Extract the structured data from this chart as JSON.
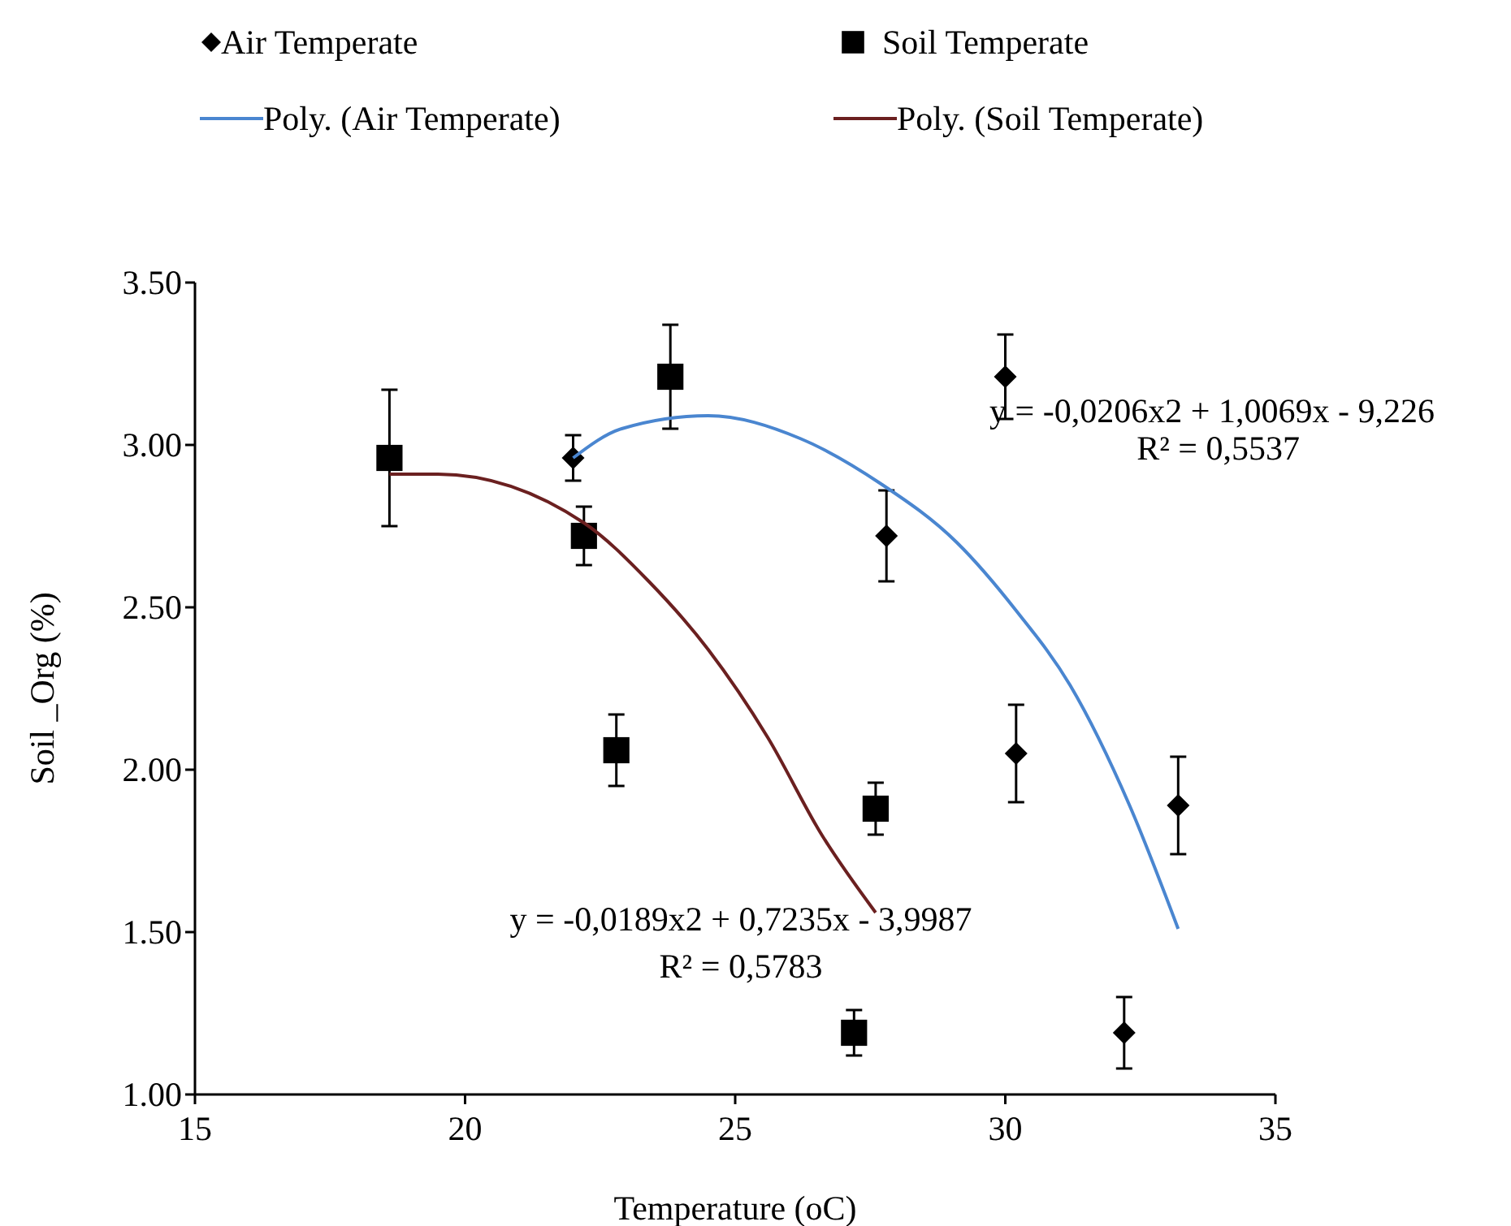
{
  "chart_data": {
    "type": "scatter",
    "xlabel": "Temperature (oC)",
    "ylabel": "Soil _Org  (%)",
    "xlim": [
      15,
      35
    ],
    "xticks": [
      15,
      20,
      25,
      30,
      35
    ],
    "ylim": [
      1,
      3.5
    ],
    "yticks": [
      {
        "value": 1,
        "label": "1.00"
      },
      {
        "value": 1.5,
        "label": "1.50"
      },
      {
        "value": 2,
        "label": "2.00"
      },
      {
        "value": 2.5,
        "label": "2.50"
      },
      {
        "value": 3,
        "label": "3.00"
      },
      {
        "value": 3.5,
        "label": "3.50"
      }
    ],
    "grid": false,
    "legend": "top",
    "series": [
      {
        "name": "Air Temperate",
        "marker": "diamond",
        "color": "#000000",
        "x": [
          22.0,
          30.0,
          27.8,
          30.2,
          33.2,
          32.2
        ],
        "values": [
          2.96,
          3.21,
          2.72,
          2.05,
          1.89,
          1.19
        ],
        "errors": [
          0.07,
          0.13,
          0.14,
          0.15,
          0.15,
          0.11
        ]
      },
      {
        "name": "Soil Temperate",
        "marker": "square",
        "color": "#000000",
        "x": [
          18.6,
          22.2,
          23.8,
          22.8,
          27.6,
          27.2
        ],
        "values": [
          2.96,
          2.72,
          3.21,
          2.06,
          1.88,
          1.19
        ],
        "errors": [
          0.21,
          0.09,
          0.16,
          0.11,
          0.08,
          0.07
        ]
      },
      {
        "name": "Poly. (Air Temperate)",
        "type": "line",
        "marker": "none",
        "color": "#4a86d0",
        "x": [
          22.0,
          22.9,
          24.5,
          26.2,
          27.7,
          29.1,
          30.2,
          31.2,
          32.3,
          33.2
        ],
        "values": [
          2.96,
          3.05,
          3.09,
          3.02,
          2.88,
          2.7,
          2.49,
          2.26,
          1.89,
          1.51
        ]
      },
      {
        "name": "Poly. (Soil Temperate)",
        "type": "line",
        "marker": "none",
        "color": "#6b2020",
        "x": [
          18.6,
          19.5,
          22.2,
          23.4,
          24.5,
          25.6,
          26.6,
          27.6
        ],
        "values": [
          2.91,
          2.91,
          2.76,
          2.58,
          2.37,
          2.1,
          1.8,
          1.56
        ]
      }
    ],
    "annotations": [
      "y = -0,0206x2 + 1,0069x - 9,226",
      "R² = 0,5537",
      "y = -0,0189x2 + 0,7235x - 3,9987",
      "R² = 0,5783"
    ]
  }
}
